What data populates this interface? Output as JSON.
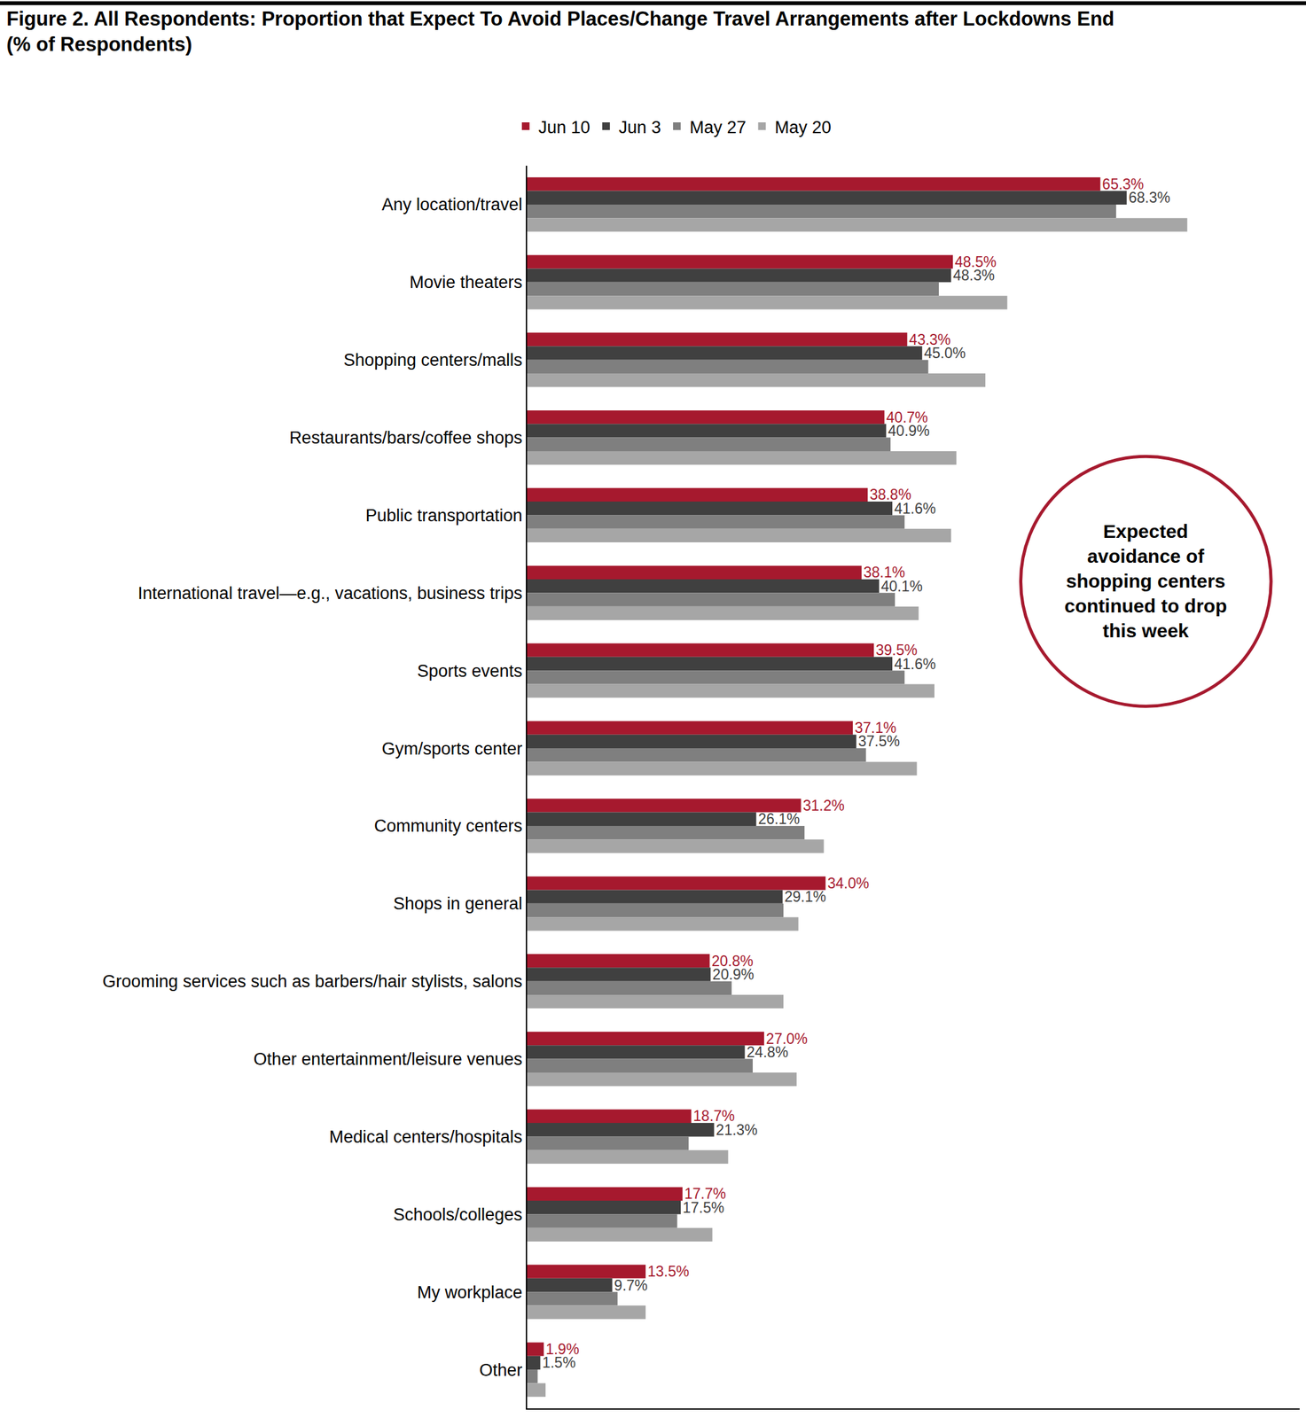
{
  "chart_data": {
    "type": "bar",
    "orientation": "horizontal",
    "title": "Figure 2. All Respondents: Proportion that Expect To Avoid Places/Change Travel Arrangements after Lockdowns End (% of Respondents)",
    "categories": [
      "Any location/travel",
      "Movie theaters",
      "Shopping centers/malls",
      "Restaurants/bars/coffee shops",
      "Public transportation",
      "International travel—e.g., vacations, business trips",
      "Sports events",
      "Gym/sports center",
      "Community centers",
      "Shops in general",
      "Grooming services such as barbers/hair stylists, salons",
      "Other entertainment/leisure venues",
      "Medical centers/hospitals",
      "Schools/colleges",
      "My workplace",
      "Other"
    ],
    "series": [
      {
        "name": "Jun 10",
        "color": "#a6192e",
        "data_labels": true,
        "values": [
          65.3,
          48.5,
          43.3,
          40.7,
          38.8,
          38.1,
          39.5,
          37.1,
          31.2,
          34.0,
          20.8,
          27.0,
          18.7,
          17.7,
          13.5,
          1.9
        ],
        "value_labels": [
          "65.3%",
          "48.5%",
          "43.3%",
          "40.7%",
          "38.8%",
          "38.1%",
          "39.5%",
          "37.1%",
          "31.2%",
          "34.0%",
          "20.8%",
          "27.0%",
          "18.7%",
          "17.7%",
          "13.5%",
          "1.9%"
        ]
      },
      {
        "name": "Jun 3",
        "color": "#404040",
        "data_labels": true,
        "values": [
          68.3,
          48.3,
          45.0,
          40.9,
          41.6,
          40.1,
          41.6,
          37.5,
          26.1,
          29.1,
          20.9,
          24.8,
          21.3,
          17.5,
          9.7,
          1.5
        ],
        "value_labels": [
          "68.3%",
          "48.3%",
          "45.0%",
          "40.9%",
          "41.6%",
          "40.1%",
          "41.6%",
          "37.5%",
          "26.1%",
          "29.1%",
          "20.9%",
          "24.8%",
          "21.3%",
          "17.5%",
          "9.7%",
          "1.5%"
        ]
      },
      {
        "name": "May 27",
        "color": "#7f7f7f",
        "data_labels": false,
        "values": [
          67.1,
          46.9,
          45.7,
          41.4,
          43.0,
          41.9,
          43.0,
          38.6,
          31.6,
          29.2,
          23.3,
          25.7,
          18.4,
          17.1,
          10.3,
          1.2
        ]
      },
      {
        "name": "May 20",
        "color": "#a6a6a6",
        "data_labels": false,
        "values": [
          75.2,
          54.7,
          52.2,
          48.9,
          48.3,
          44.6,
          46.4,
          44.4,
          33.8,
          30.9,
          29.2,
          30.7,
          22.9,
          21.1,
          13.5,
          2.1
        ]
      }
    ],
    "xlim": [
      0,
      88
    ],
    "xticks": [],
    "tick_labels": "y",
    "grid": false,
    "legend": "top",
    "annotations": [
      {
        "text": "Expected avoidance of shopping centers continued to drop this week"
      }
    ]
  }
}
